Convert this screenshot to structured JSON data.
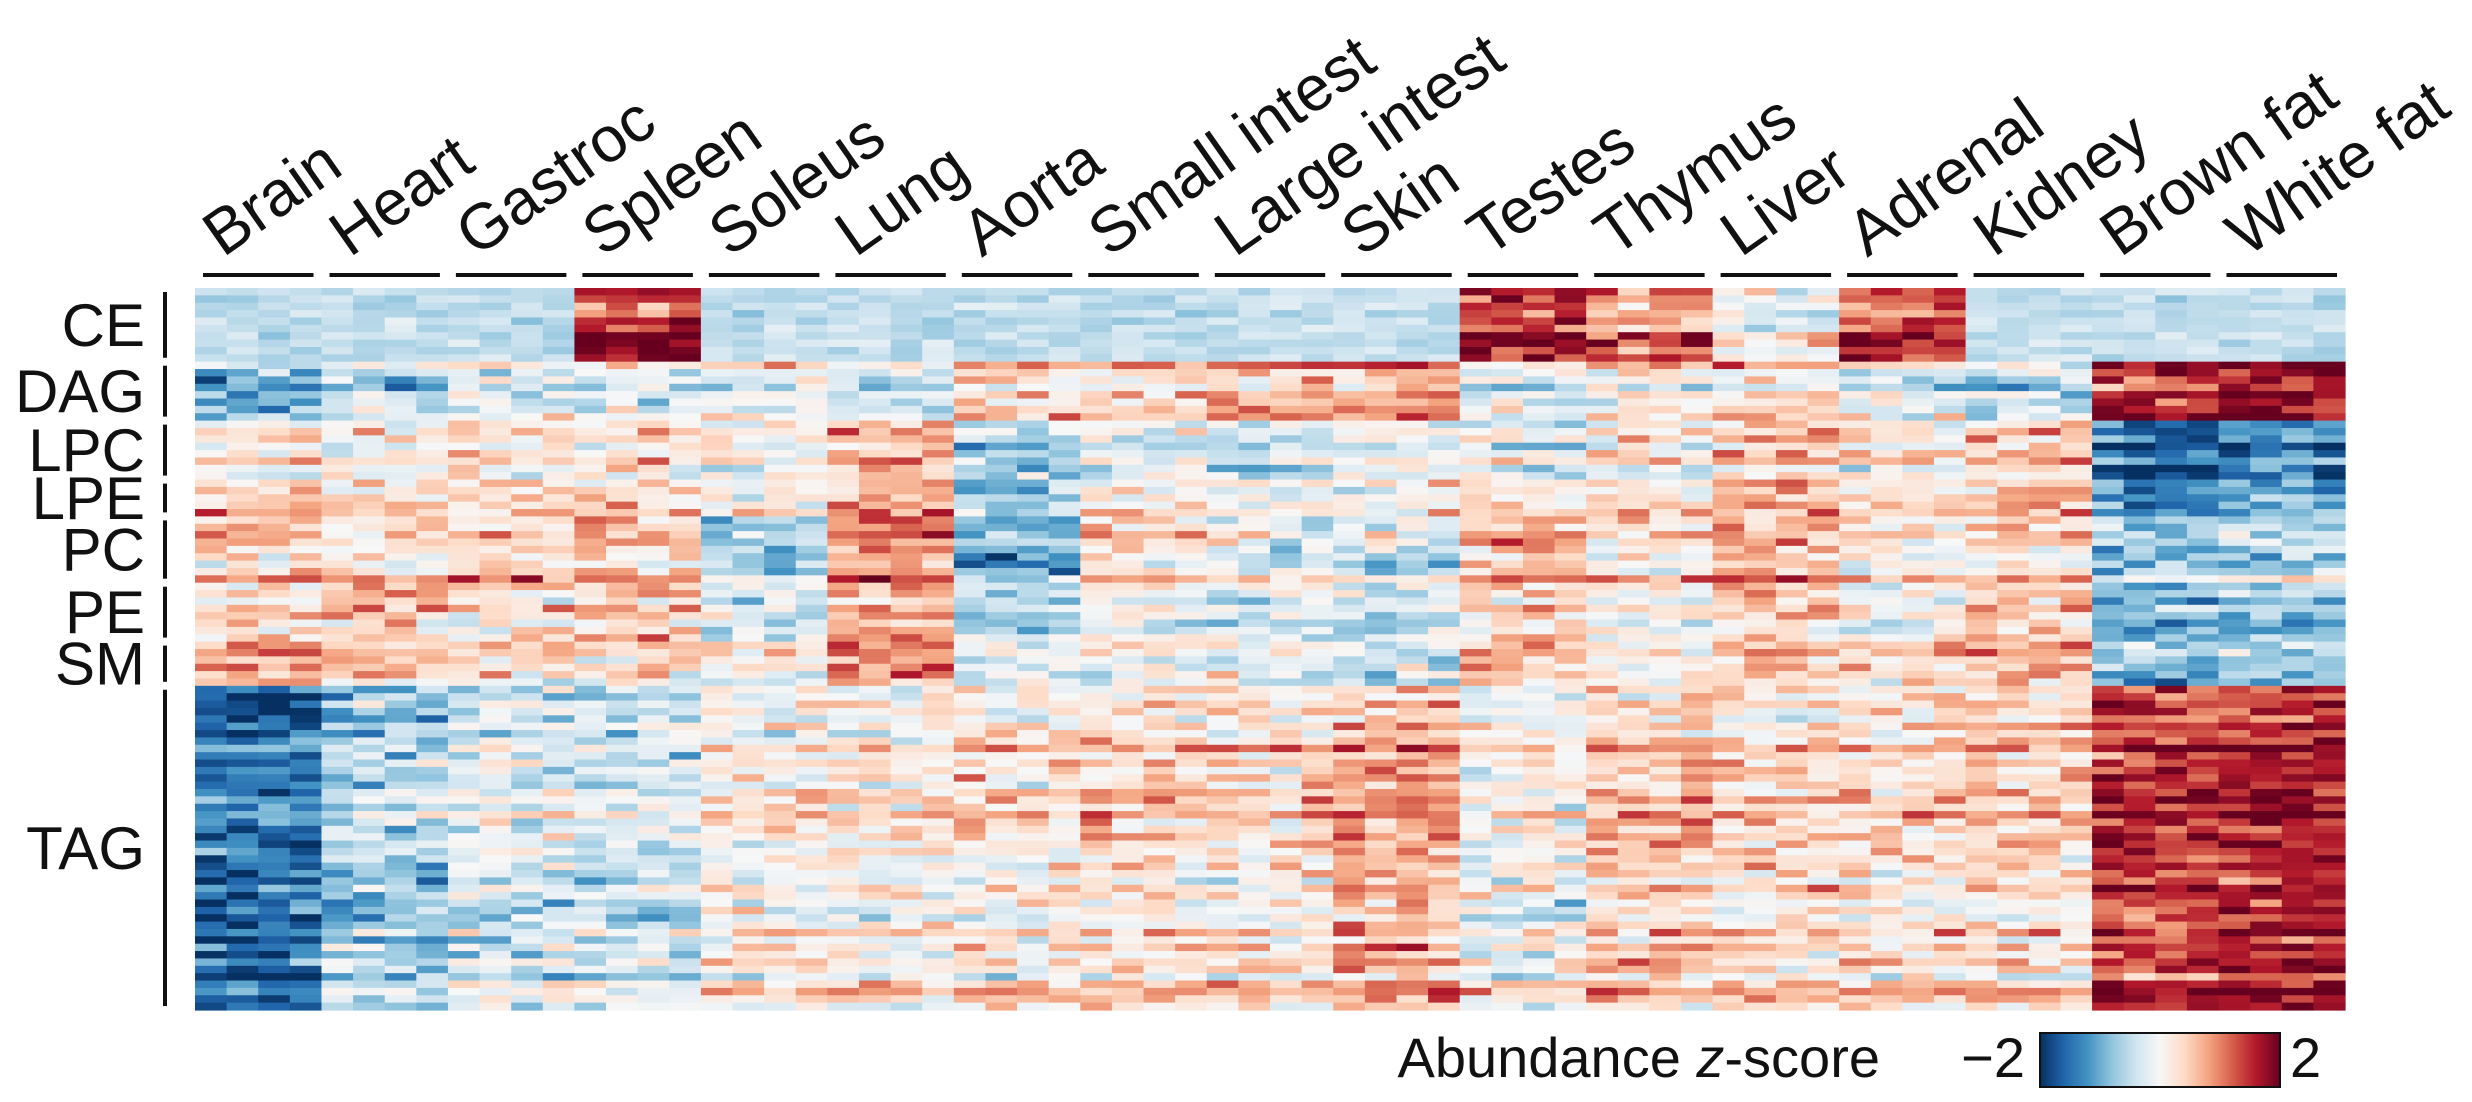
{
  "chart_data": {
    "type": "heatmap",
    "title": "",
    "columns": [
      "Brain",
      "Heart",
      "Gastroc",
      "Spleen",
      "Soleus",
      "Lung",
      "Aorta",
      "Small intest",
      "Large intest",
      "Skin",
      "Testes",
      "Thymus",
      "Liver",
      "Adrenal",
      "Kidney",
      "Brown fat",
      "White fat"
    ],
    "row_groups": [
      "CE",
      "DAG",
      "LPC",
      "LPE",
      "PC",
      "PE",
      "SM",
      "TAG"
    ],
    "colorbar": {
      "label_prefix": "Abundance ",
      "label_italic": "z",
      "label_suffix": "-score",
      "min_label": "−2",
      "max_label": "2",
      "range": [
        -2,
        2
      ],
      "colormap": "RdBu_r",
      "colors": [
        "#053061",
        "#2166ac",
        "#4393c3",
        "#92c5de",
        "#d1e5f0",
        "#f7f7f7",
        "#fddbc7",
        "#f4a582",
        "#d6604d",
        "#b2182b",
        "#67001f"
      ]
    },
    "group_profiles": {
      "CE": [
        -0.3,
        -0.5,
        -0.5,
        1.6,
        -0.6,
        -0.3,
        -0.4,
        -0.3,
        -0.3,
        -0.3,
        1.5,
        1.0,
        0.0,
        1.4,
        -0.6,
        -0.6,
        -0.6
      ],
      "DAG": [
        -1.0,
        -0.6,
        -0.2,
        -0.3,
        -0.1,
        -0.4,
        0.3,
        0.4,
        0.6,
        0.7,
        -0.2,
        0.1,
        0.2,
        -0.2,
        -0.5,
        1.5,
        1.8
      ],
      "LPC": [
        0.3,
        0.2,
        0.3,
        0.4,
        0.2,
        0.8,
        -0.4,
        0.0,
        -0.2,
        0.1,
        0.0,
        0.3,
        0.7,
        0.3,
        0.7,
        -1.4,
        -1.2
      ],
      "LPE": [
        0.4,
        0.2,
        0.2,
        0.3,
        -0.1,
        0.6,
        -0.7,
        0.1,
        -0.2,
        0.0,
        0.2,
        0.1,
        0.6,
        0.3,
        0.6,
        -1.3,
        -1.2
      ],
      "PC": [
        0.5,
        0.3,
        0.4,
        0.4,
        -0.6,
        1.0,
        -1.1,
        0.4,
        -0.2,
        -0.3,
        0.6,
        0.2,
        0.6,
        0.1,
        0.3,
        -0.8,
        -0.6
      ],
      "PE": [
        0.4,
        0.6,
        0.3,
        0.6,
        -0.2,
        0.9,
        -0.5,
        0.0,
        -0.1,
        -0.3,
        0.4,
        0.1,
        0.5,
        0.0,
        0.6,
        -0.9,
        -0.7
      ],
      "SM": [
        0.5,
        0.3,
        0.1,
        0.2,
        -0.1,
        0.8,
        -0.2,
        -0.2,
        -0.2,
        -0.5,
        0.3,
        0.0,
        0.4,
        0.2,
        0.5,
        -1.0,
        -0.8
      ],
      "TAG": [
        -1.5,
        -0.6,
        -0.3,
        -0.4,
        0.1,
        0.1,
        0.2,
        0.3,
        0.2,
        0.7,
        0.0,
        0.5,
        0.3,
        0.3,
        0.4,
        1.4,
        1.6
      ]
    }
  }
}
